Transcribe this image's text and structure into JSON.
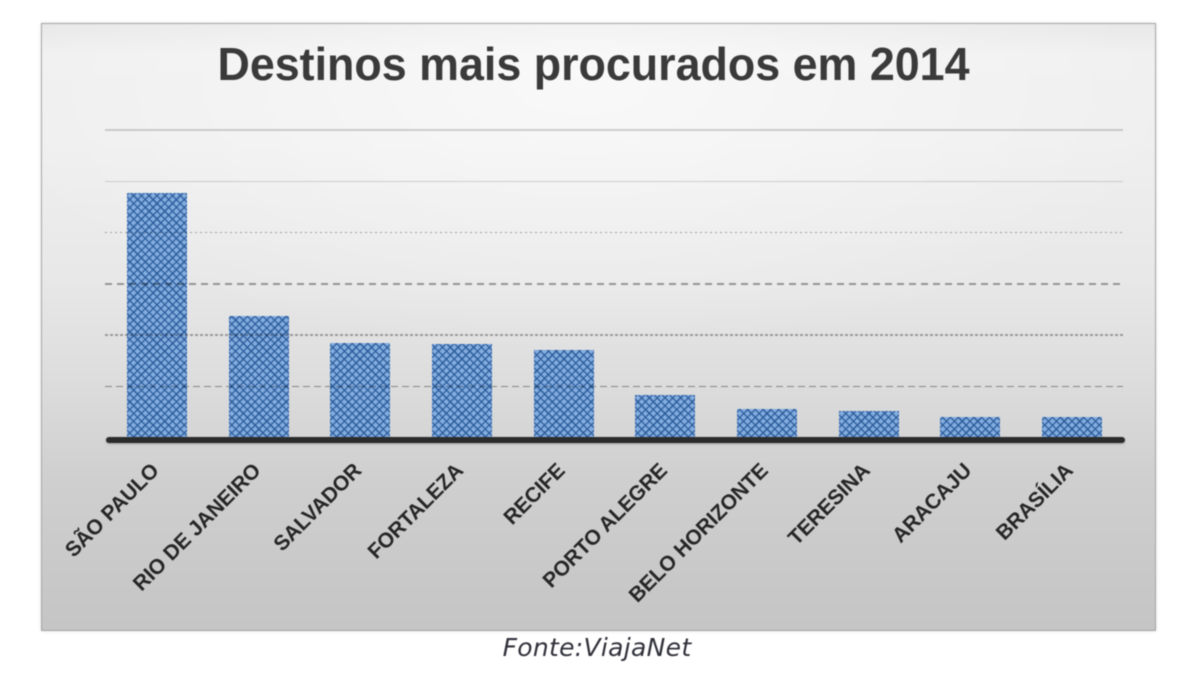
{
  "figure": {
    "kind": "bar chart image",
    "background_top": "#f0f0f0",
    "background_bottom": "#c5c5c5",
    "border_color": "#a6a6a6"
  },
  "chart_data": {
    "type": "bar",
    "title": "Destinos mais procurados em 2014",
    "categories": [
      "SÃO PAULO",
      "RIO DE JANEIRO",
      "SALVADOR",
      "FORTALEZA",
      "RECIFE",
      "PORTO ALEGRE",
      "BELO HORIZONTE",
      "TERESINA",
      "ARACAJU",
      "BRASÍLIA"
    ],
    "values": [
      4.79,
      2.39,
      1.87,
      1.86,
      1.73,
      0.85,
      0.58,
      0.54,
      0.42,
      0.42
    ],
    "xlabel": "",
    "ylabel": "",
    "ylim": [
      0,
      6.5
    ],
    "y_axis_labels_visible": false,
    "gridline_count": 6,
    "grid": "horizontal dashed, one per unit value",
    "legend_position": "none",
    "bar_fill_color": "#83acdf",
    "bar_pattern_color": "#2b5c9a",
    "axis_color": "#2b2b2b",
    "title_color": "#3a3a3a",
    "label_color": "#262626"
  },
  "caption": {
    "text": "Fonte:ViajaNet",
    "color": "#31313b"
  }
}
